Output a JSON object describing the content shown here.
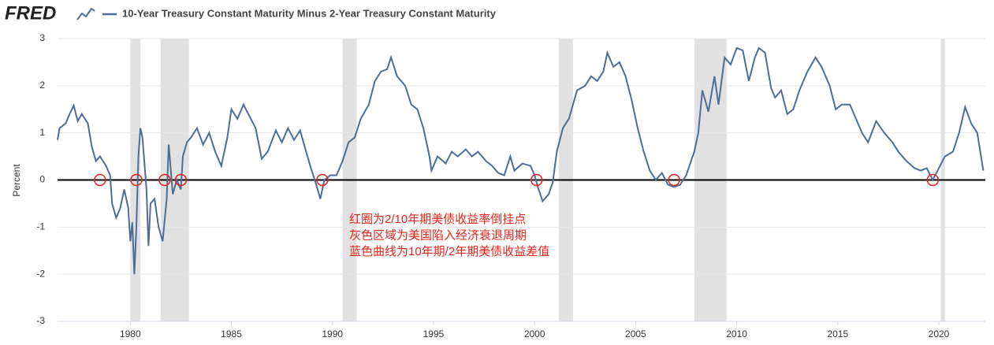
{
  "logo": "FRED",
  "chart_data": {
    "type": "line",
    "y_label": "Percent",
    "xlim": [
      1976.4,
      2022.3
    ],
    "xticks": [
      1980,
      1985,
      1990,
      1995,
      2000,
      2005,
      2010,
      2015,
      2020
    ],
    "ylim": [
      -3,
      3
    ],
    "yticks": [
      -3,
      -2,
      -1,
      0,
      1,
      2,
      3
    ],
    "grid": true,
    "recession_color": "#e1e1e1",
    "recessions": [
      [
        1980.0,
        1980.5
      ],
      [
        1981.5,
        1982.9
      ],
      [
        1990.5,
        1991.2
      ],
      [
        2001.2,
        2001.9
      ],
      [
        2007.9,
        2009.5
      ],
      [
        2020.1,
        2020.3
      ]
    ],
    "inversion_marker_color": "#e8231b",
    "inversion_markers": [
      1978.5,
      1980.3,
      1981.7,
      1982.5,
      1989.5,
      2000.1,
      2006.9,
      2019.7
    ],
    "annotations": [
      "红圈为2/10年期美债收益率倒挂点",
      "灰色区域为美国陷入经济衰退周期",
      "蓝色曲线为10年期/2年期美债收益差值"
    ],
    "annotation_color": "#e8231b",
    "x": [
      1976.4,
      1976.5,
      1976.8,
      1977.0,
      1977.2,
      1977.4,
      1977.6,
      1977.9,
      1978.1,
      1978.3,
      1978.5,
      1978.8,
      1979.0,
      1979.1,
      1979.3,
      1979.5,
      1979.7,
      1979.9,
      1980.0,
      1980.1,
      1980.2,
      1980.3,
      1980.4,
      1980.5,
      1980.6,
      1980.8,
      1980.9,
      1981.0,
      1981.2,
      1981.4,
      1981.6,
      1981.8,
      1981.9,
      1982.1,
      1982.3,
      1982.5,
      1982.6,
      1982.8,
      1983.0,
      1983.3,
      1983.6,
      1983.9,
      1984.2,
      1984.5,
      1984.8,
      1985.0,
      1985.3,
      1985.6,
      1985.9,
      1986.2,
      1986.5,
      1986.8,
      1987.2,
      1987.5,
      1987.8,
      1988.1,
      1988.4,
      1988.7,
      1988.9,
      1989.2,
      1989.4,
      1989.6,
      1989.9,
      1990.2,
      1990.5,
      1990.8,
      1991.1,
      1991.4,
      1991.8,
      1992.1,
      1992.4,
      1992.7,
      1992.9,
      1993.2,
      1993.6,
      1993.9,
      1994.2,
      1994.5,
      1994.8,
      1994.9,
      1995.2,
      1995.6,
      1995.9,
      1996.2,
      1996.6,
      1996.9,
      1997.2,
      1997.6,
      1997.9,
      1998.2,
      1998.5,
      1998.8,
      1999.0,
      1999.4,
      1999.8,
      2000.0,
      2000.2,
      2000.4,
      2000.7,
      2000.9,
      2001.1,
      2001.4,
      2001.7,
      2001.9,
      2002.1,
      2002.5,
      2002.8,
      2003.1,
      2003.4,
      2003.6,
      2003.9,
      2004.2,
      2004.5,
      2004.8,
      2005.1,
      2005.4,
      2005.7,
      2006.0,
      2006.3,
      2006.6,
      2006.9,
      2007.2,
      2007.5,
      2007.9,
      2008.1,
      2008.3,
      2008.6,
      2008.9,
      2009.1,
      2009.4,
      2009.7,
      2010.0,
      2010.3,
      2010.6,
      2010.9,
      2011.1,
      2011.4,
      2011.7,
      2011.9,
      2012.2,
      2012.5,
      2012.8,
      2013.1,
      2013.5,
      2013.9,
      2014.2,
      2014.6,
      2014.9,
      2015.2,
      2015.6,
      2015.9,
      2016.2,
      2016.5,
      2016.9,
      2017.3,
      2017.7,
      2018.0,
      2018.4,
      2018.8,
      2019.1,
      2019.4,
      2019.7,
      2020.0,
      2020.3,
      2020.7,
      2021.0,
      2021.3,
      2021.6,
      2021.9,
      2022.2
    ],
    "series": [
      {
        "name": "10-Year Treasury Constant Maturity Minus 2-Year Treasury Constant Maturity",
        "color": "#4c6e96",
        "values": [
          0.85,
          1.1,
          1.2,
          1.4,
          1.58,
          1.25,
          1.4,
          1.2,
          0.7,
          0.4,
          0.5,
          0.3,
          0.1,
          -0.5,
          -0.8,
          -0.6,
          -0.2,
          -0.6,
          -1.3,
          -0.9,
          -2.0,
          -1.0,
          0.5,
          1.1,
          0.9,
          -0.2,
          -1.4,
          -0.5,
          -0.4,
          -1.0,
          -1.3,
          -0.4,
          0.75,
          -0.3,
          0.0,
          -0.2,
          0.5,
          0.8,
          0.9,
          1.1,
          0.75,
          1.0,
          0.6,
          0.3,
          0.9,
          1.5,
          1.3,
          1.6,
          1.35,
          1.1,
          0.45,
          0.6,
          1.05,
          0.8,
          1.1,
          0.85,
          1.05,
          0.6,
          0.3,
          -0.1,
          -0.4,
          0.0,
          0.1,
          0.1,
          0.4,
          0.8,
          0.9,
          1.3,
          1.6,
          2.1,
          2.3,
          2.35,
          2.6,
          2.2,
          2.0,
          1.6,
          1.5,
          1.1,
          0.5,
          0.2,
          0.5,
          0.35,
          0.6,
          0.5,
          0.65,
          0.5,
          0.6,
          0.4,
          0.3,
          0.15,
          0.1,
          0.5,
          0.2,
          0.35,
          0.3,
          0.1,
          -0.2,
          -0.45,
          -0.3,
          -0.05,
          0.6,
          1.1,
          1.3,
          1.6,
          1.9,
          2.0,
          2.2,
          2.1,
          2.3,
          2.7,
          2.4,
          2.5,
          2.2,
          1.7,
          1.1,
          0.6,
          0.2,
          0.0,
          0.15,
          -0.1,
          -0.15,
          -0.1,
          0.1,
          0.6,
          1.0,
          1.9,
          1.45,
          2.2,
          1.6,
          2.6,
          2.45,
          2.8,
          2.75,
          2.1,
          2.6,
          2.8,
          2.7,
          1.95,
          1.75,
          1.9,
          1.4,
          1.5,
          1.9,
          2.3,
          2.6,
          2.4,
          2.0,
          1.5,
          1.6,
          1.6,
          1.3,
          1.0,
          0.8,
          1.25,
          1.0,
          0.8,
          0.6,
          0.4,
          0.25,
          0.2,
          0.25,
          0.0,
          0.25,
          0.5,
          0.6,
          1.0,
          1.55,
          1.2,
          1.0,
          0.2
        ]
      }
    ]
  }
}
